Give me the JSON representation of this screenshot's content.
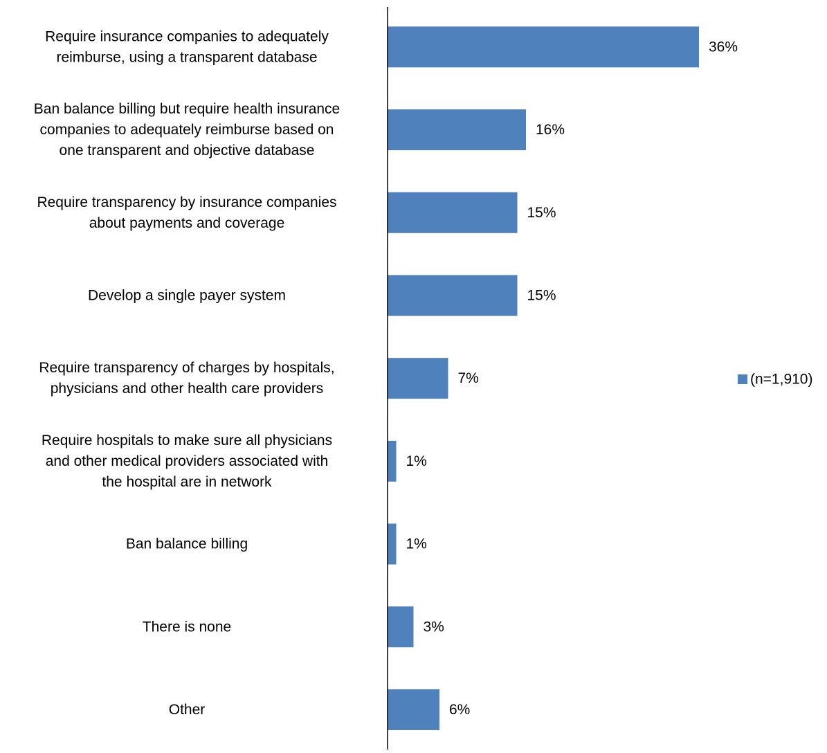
{
  "chart_data": {
    "type": "bar",
    "orientation": "horizontal",
    "categories": [
      [
        "Require insurance companies to adequately",
        "reimburse, using a transparent database"
      ],
      [
        "Ban balance billing but require health insurance",
        "companies to adequately reimburse based on",
        "one transparent and objective database"
      ],
      [
        "Require transparency by insurance companies",
        "about payments and coverage"
      ],
      [
        "Develop a single payer system"
      ],
      [
        "Require transparency of charges by hospitals,",
        "physicians and other health care providers"
      ],
      [
        "Require hospitals to make sure all physicians",
        "and other medical providers associated with",
        "the hospital are in network"
      ],
      [
        "Ban balance billing"
      ],
      [
        "There is none"
      ],
      [
        "Other"
      ]
    ],
    "series": [
      {
        "name": "(n=1,910)",
        "color": "#4F81BD",
        "values": [
          36,
          16,
          15,
          15,
          7,
          1,
          1,
          3,
          6
        ],
        "labels": [
          "36%",
          "16%",
          "15%",
          "15%",
          "7%",
          "1%",
          "1%",
          "3%",
          "6%"
        ]
      }
    ],
    "xlim": [
      0,
      40
    ],
    "grid": false,
    "legend_position": "right"
  }
}
